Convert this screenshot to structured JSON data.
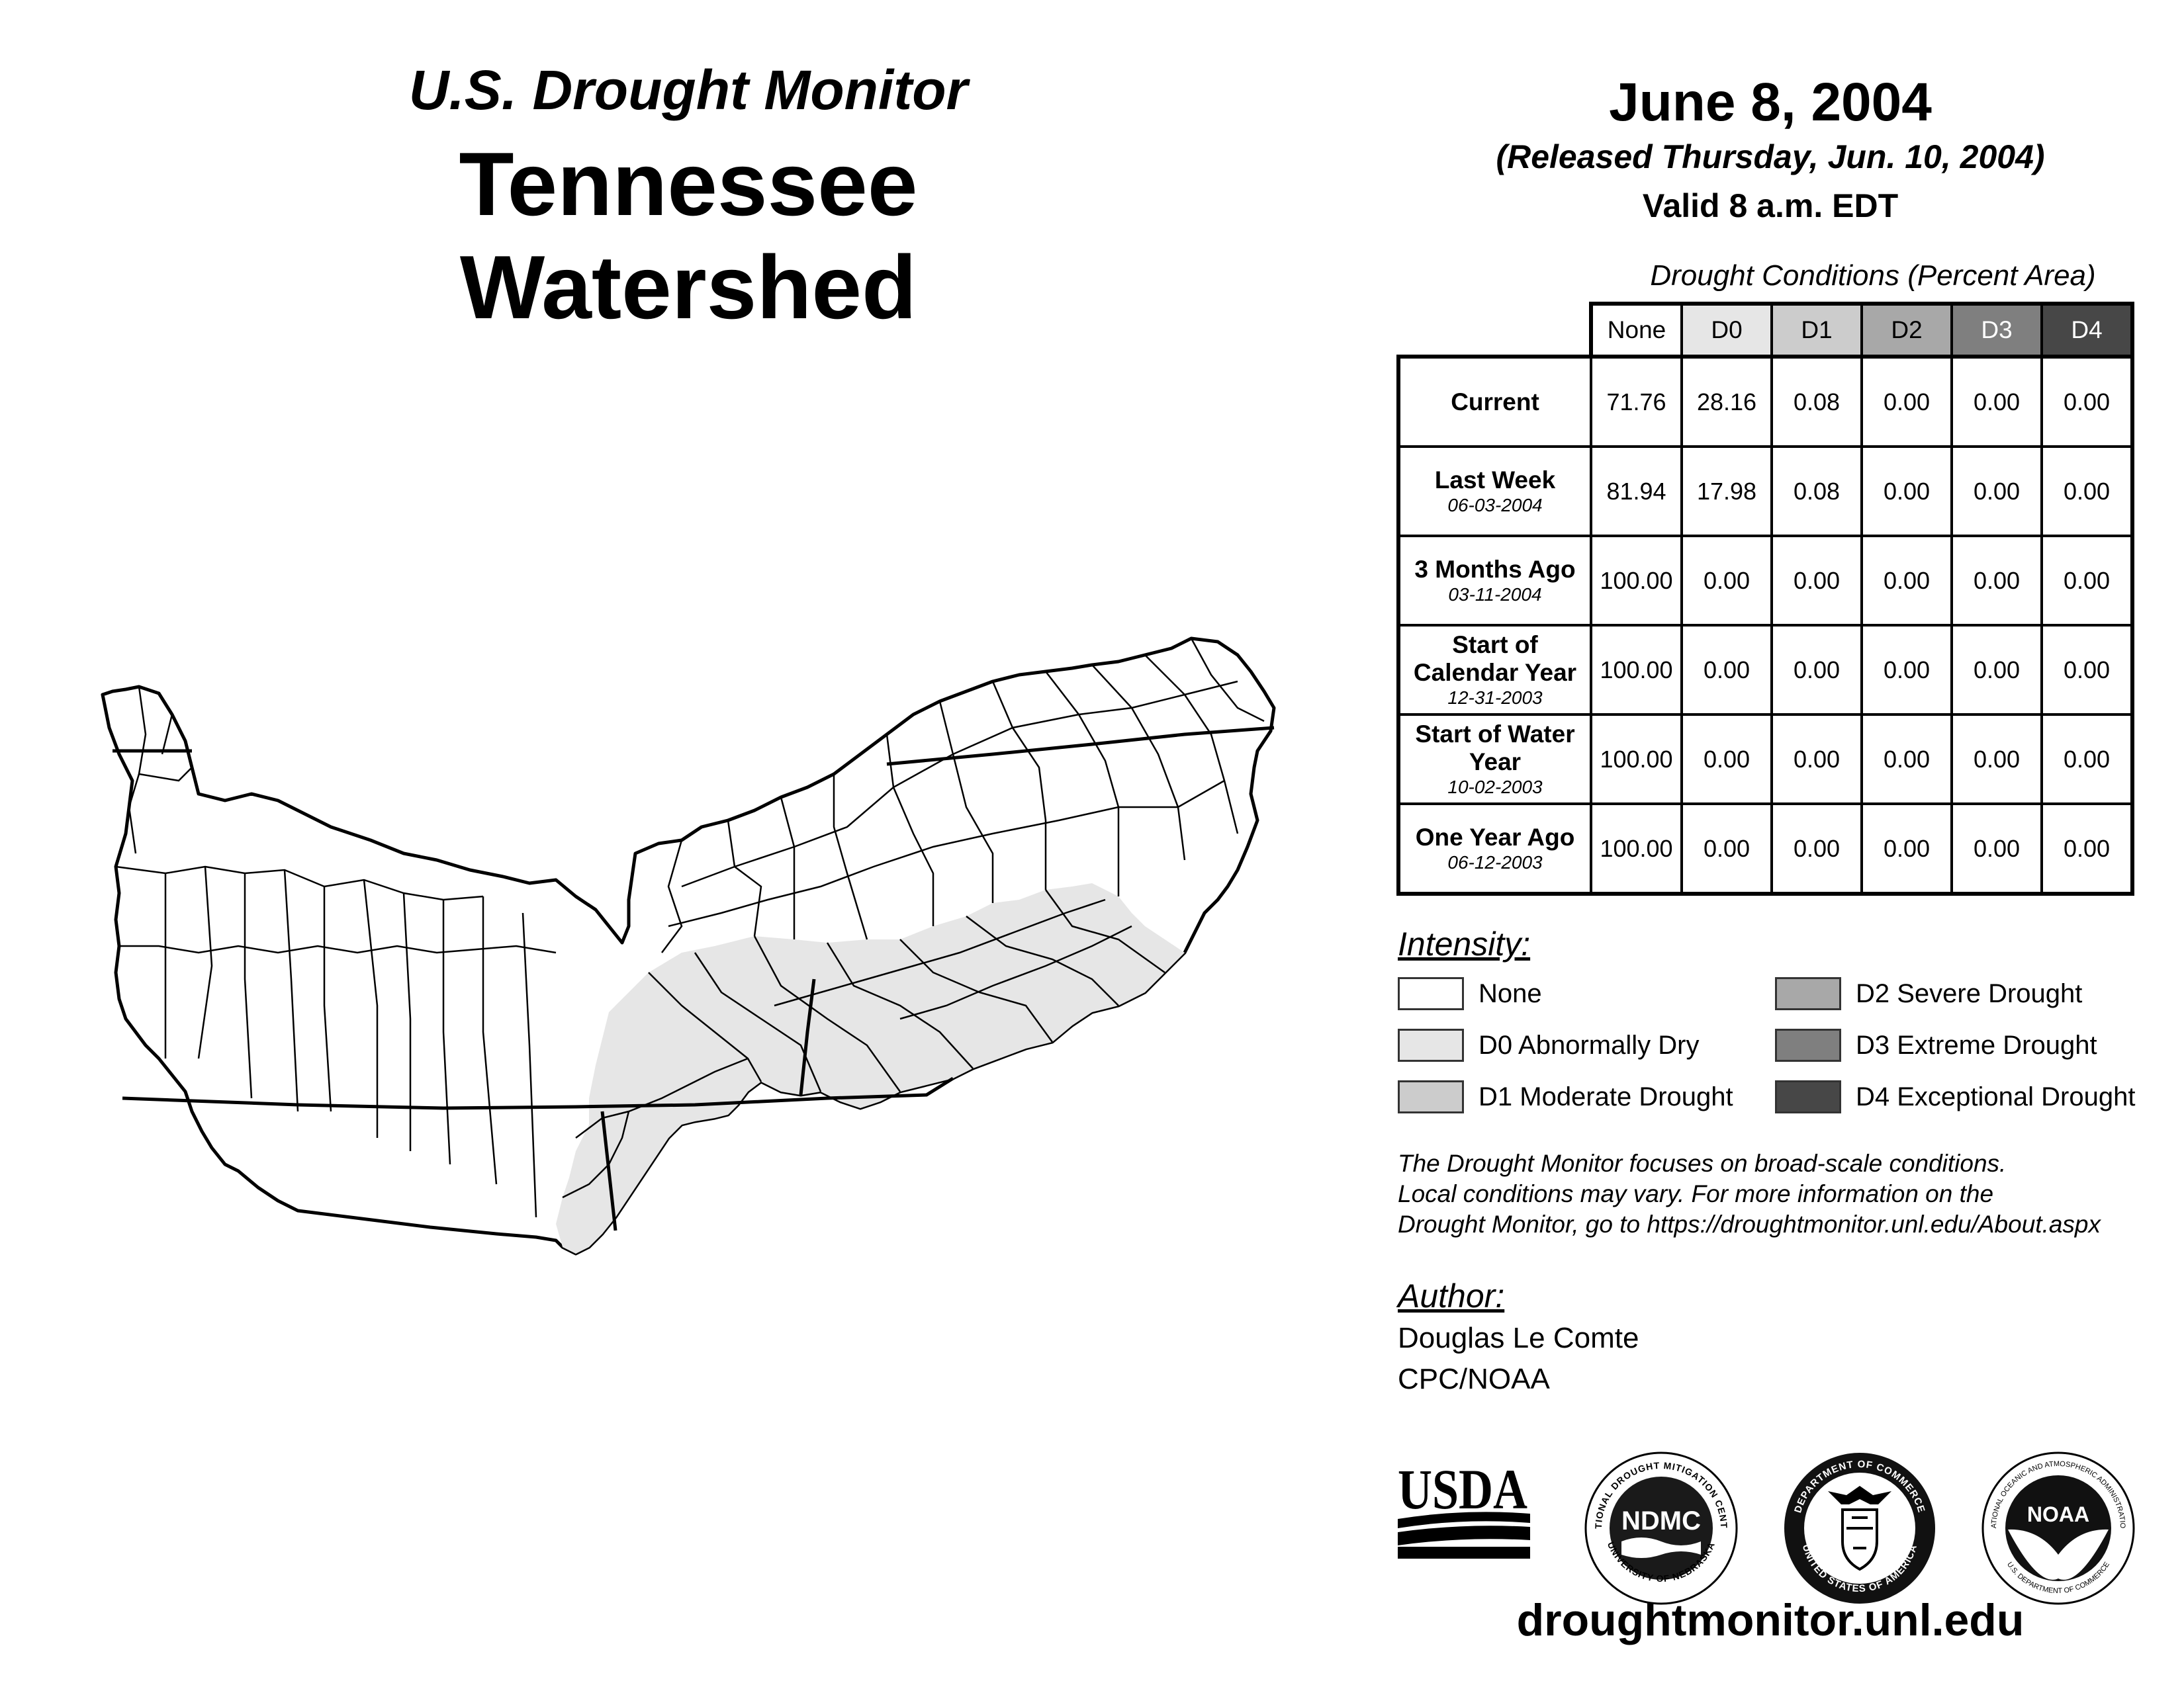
{
  "header": {
    "subtitle": "U.S. Drought Monitor",
    "title": "Tennessee Watershed",
    "date": "June 8, 2004",
    "released": "(Released Thursday, Jun. 10, 2004)",
    "valid": "Valid 8 a.m. EDT"
  },
  "table": {
    "caption": "Drought Conditions (Percent Area)",
    "columns": [
      "None",
      "D0",
      "D1",
      "D2",
      "D3",
      "D4"
    ],
    "column_colors": [
      "#ffffff",
      "#e6e6e6",
      "#cccccc",
      "#a8a8a8",
      "#7f7f7f",
      "#474747"
    ],
    "rows": [
      {
        "label": "Current",
        "date": "",
        "values": [
          "71.76",
          "28.16",
          "0.08",
          "0.00",
          "0.00",
          "0.00"
        ]
      },
      {
        "label": "Last Week",
        "date": "06-03-2004",
        "values": [
          "81.94",
          "17.98",
          "0.08",
          "0.00",
          "0.00",
          "0.00"
        ]
      },
      {
        "label": "3 Months Ago",
        "date": "03-11-2004",
        "values": [
          "100.00",
          "0.00",
          "0.00",
          "0.00",
          "0.00",
          "0.00"
        ]
      },
      {
        "label": "Start of Calendar Year",
        "date": "12-31-2003",
        "values": [
          "100.00",
          "0.00",
          "0.00",
          "0.00",
          "0.00",
          "0.00"
        ]
      },
      {
        "label": "Start of Water Year",
        "date": "10-02-2003",
        "values": [
          "100.00",
          "0.00",
          "0.00",
          "0.00",
          "0.00",
          "0.00"
        ]
      },
      {
        "label": "One Year Ago",
        "date": "06-12-2003",
        "values": [
          "100.00",
          "0.00",
          "0.00",
          "0.00",
          "0.00",
          "0.00"
        ]
      }
    ]
  },
  "legend": {
    "heading": "Intensity:",
    "items": [
      {
        "label": "None",
        "color": "#ffffff"
      },
      {
        "label": "D0 Abnormally Dry",
        "color": "#e6e6e6"
      },
      {
        "label": "D1 Moderate Drought",
        "color": "#cccccc"
      },
      {
        "label": "D2 Severe Drought",
        "color": "#a8a8a8"
      },
      {
        "label": "D3 Extreme Drought",
        "color": "#7f7f7f"
      },
      {
        "label": "D4 Exceptional Drought",
        "color": "#474747"
      }
    ]
  },
  "note": {
    "line1": "The Drought Monitor focuses on broad-scale conditions.",
    "line2": "Local conditions may vary. For more information on the",
    "line3": "Drought Monitor, go to https://droughtmonitor.unl.edu/About.aspx"
  },
  "author": {
    "heading": "Author:",
    "name": "Douglas Le Comte",
    "org": "CPC/NOAA"
  },
  "logos": {
    "usda": "USDA",
    "ndmc": "NDMC",
    "ndmc_ring_top": "NATIONAL DROUGHT MITIGATION CENTER",
    "ndmc_ring_bottom": "UNIVERSITY OF NEBRASKA",
    "commerce_ring_top": "DEPARTMENT OF COMMERCE",
    "commerce_ring_bottom": "UNITED STATES OF AMERICA",
    "noaa": "NOAA",
    "noaa_ring_top": "NATIONAL OCEANIC AND ATMOSPHERIC ADMINISTRATION",
    "noaa_ring_bottom": "U.S. DEPARTMENT OF COMMERCE"
  },
  "website": "droughtmonitor.unl.edu",
  "map_colors": {
    "none": "#ffffff",
    "d0": "#e6e6e6",
    "outline": "#000000"
  }
}
